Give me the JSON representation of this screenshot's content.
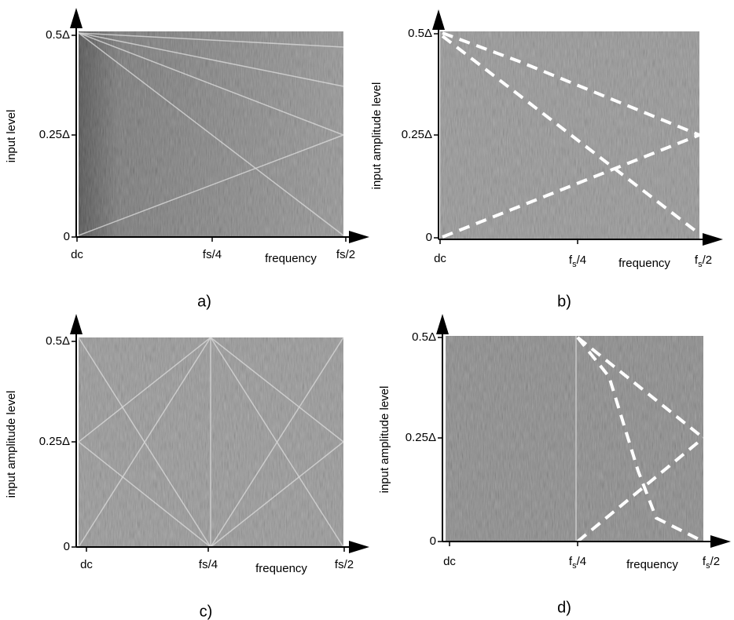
{
  "panels": [
    {
      "caption": "a)",
      "y_label": "input level",
      "y_ticks": [
        "0.5Δ",
        "0.25Δ",
        "0"
      ],
      "x_ticks": [
        "dc",
        "fs/4",
        "frequency",
        "fs/2"
      ]
    },
    {
      "caption": "b)",
      "y_label": "input amplitude level",
      "y_ticks": [
        "0.5Δ",
        "0.25Δ",
        "0"
      ],
      "x_ticks": [
        "dc",
        {
          "main": "f",
          "sub": "s",
          "tail": "/4"
        },
        "frequency",
        {
          "main": "f",
          "sub": "s",
          "tail": "/2"
        }
      ]
    },
    {
      "caption": "c)",
      "y_label": "input amplitude level",
      "y_ticks": [
        "0.5Δ",
        "0.25Δ",
        "0"
      ],
      "x_ticks": [
        "dc",
        "fs/4",
        "frequency",
        "fs/2"
      ]
    },
    {
      "caption": "d)",
      "y_label": "input amplitude level",
      "y_ticks": [
        "0.5Δ",
        "0.25Δ",
        "0"
      ],
      "x_ticks": [
        "dc",
        {
          "main": "f",
          "sub": "s",
          "tail": "/4"
        },
        "frequency",
        {
          "main": "f",
          "sub": "s",
          "tail": "/2"
        }
      ]
    }
  ]
}
